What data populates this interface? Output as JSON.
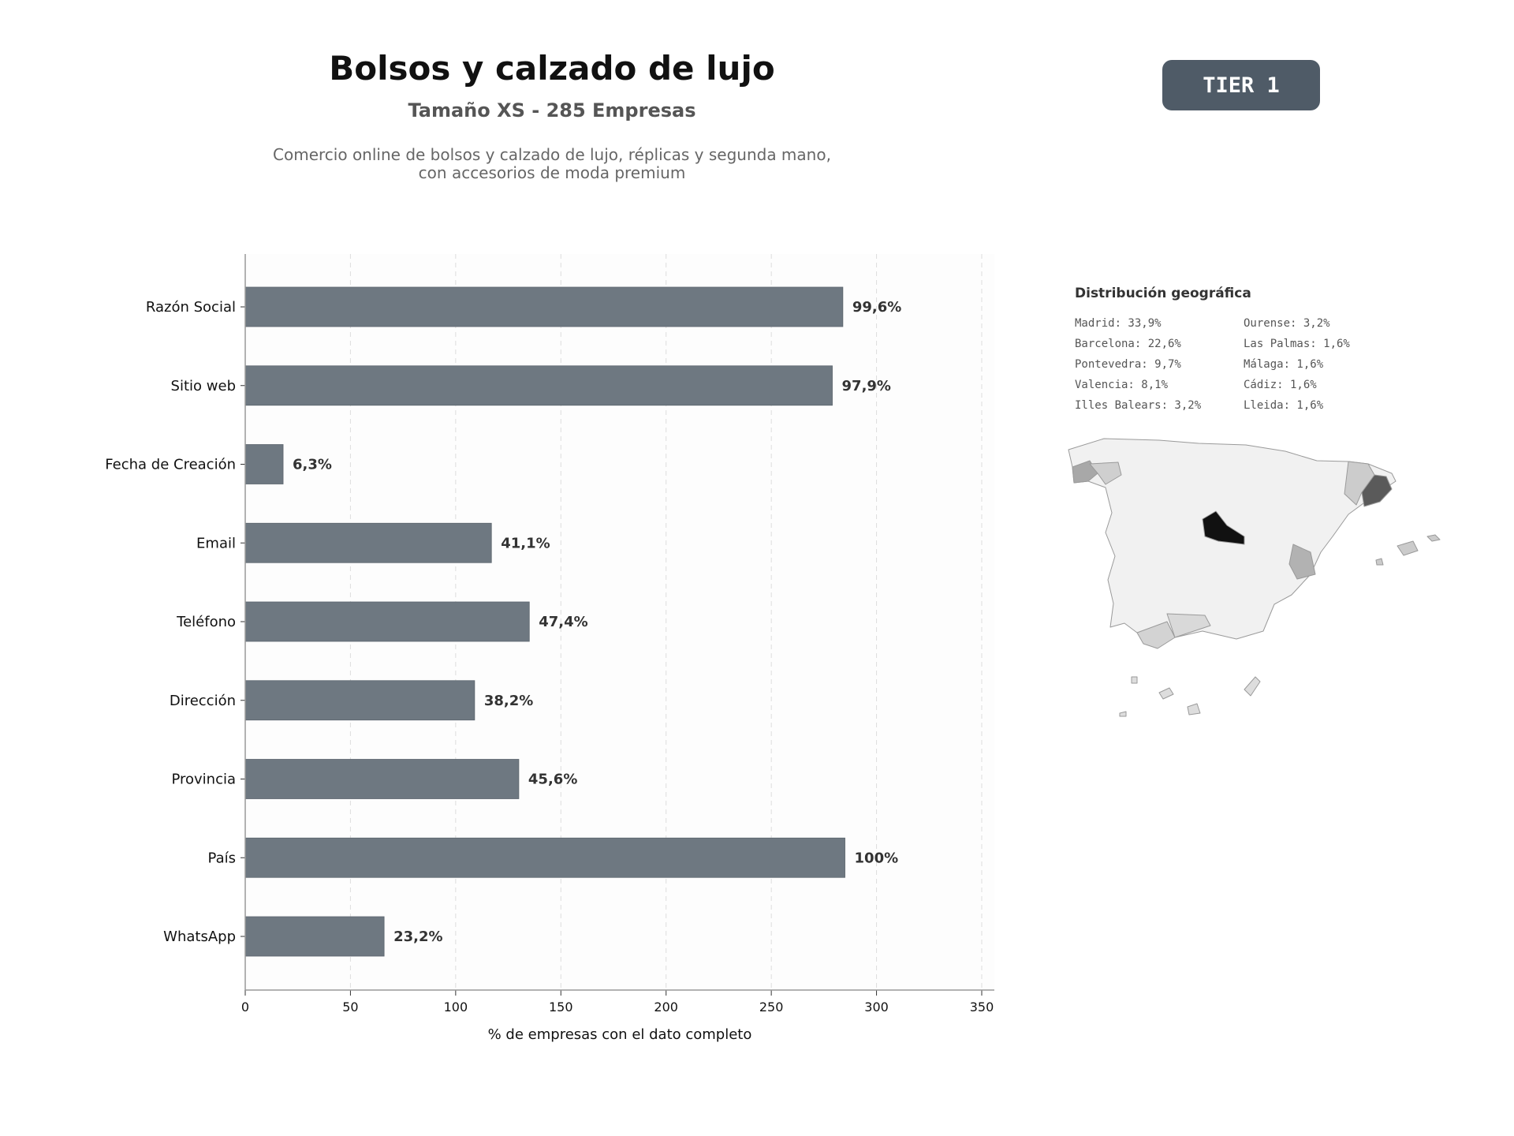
{
  "header": {
    "title": "Bolsos y calzado de lujo",
    "subtitle": "Tamaño XS - 285 Empresas",
    "description_line1": "Comercio online de bolsos y calzado de lujo, réplicas y segunda mano,",
    "description_line2": "con accesorios de moda premium",
    "badge": "TIER 1"
  },
  "chart_data": {
    "type": "bar",
    "orientation": "horizontal",
    "categories": [
      "Razón Social",
      "Sitio web",
      "Fecha de Creación",
      "Email",
      "Teléfono",
      "Dirección",
      "Provincia",
      "País",
      "WhatsApp"
    ],
    "values": [
      284,
      279,
      18,
      117,
      135,
      109,
      130,
      285,
      66
    ],
    "value_labels": [
      "99,6%",
      "97,9%",
      "6,3%",
      "41,1%",
      "47,4%",
      "38,2%",
      "45,6%",
      "100%",
      "23,2%"
    ],
    "xlabel": "% de empresas con el dato completo",
    "xlim": [
      0,
      356
    ],
    "xticks": [
      0,
      50,
      100,
      150,
      200,
      250,
      300,
      350
    ],
    "grid": "vertical-dashed",
    "bar_color": "#6e7881"
  },
  "geo": {
    "title": "Distribución geográfica",
    "items": [
      "Madrid: 33,9%",
      "Ourense: 3,2%",
      "Barcelona: 22,6%",
      "Las Palmas: 1,6%",
      "Pontevedra: 9,7%",
      "Málaga: 1,6%",
      "Valencia: 8,1%",
      "Cádiz: 1,6%",
      "Illes Balears: 3,2%",
      "Lleida: 1,6%"
    ]
  }
}
